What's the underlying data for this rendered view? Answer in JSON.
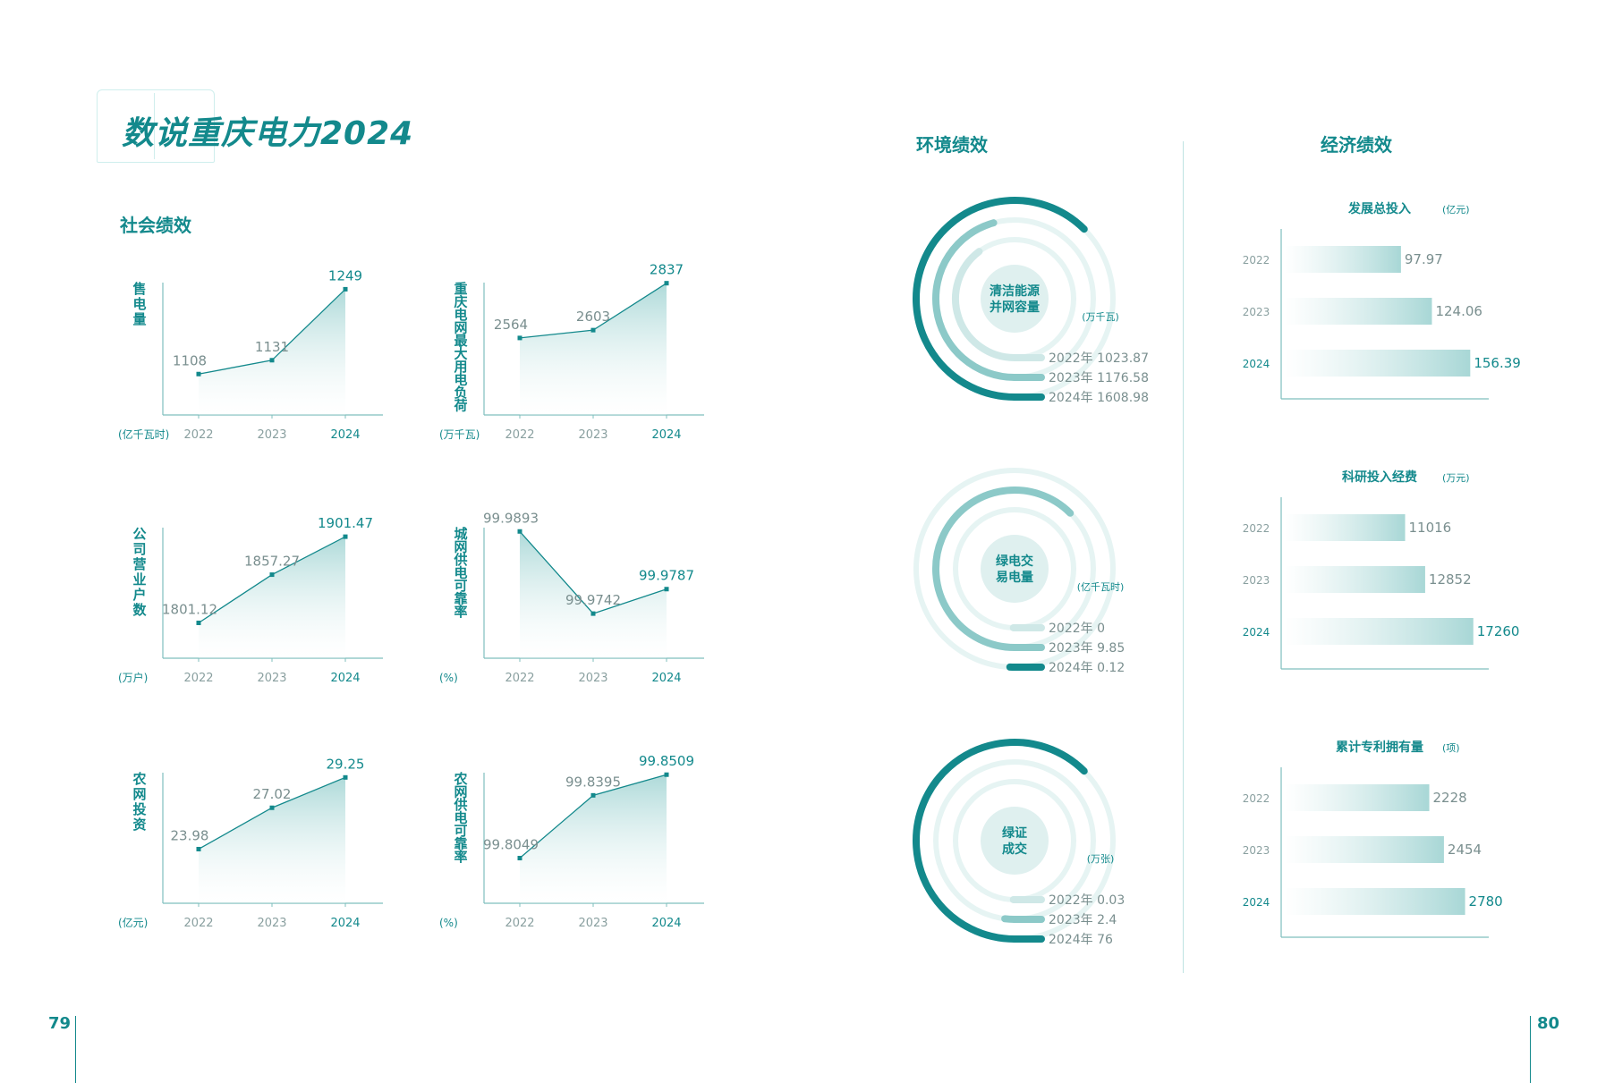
{
  "title": "数说重庆电力2024",
  "sections": {
    "social": "社会绩效",
    "environment": "环境绩效",
    "economic": "经济绩效"
  },
  "page_numbers": {
    "left": "79",
    "right": "80"
  },
  "colors": {
    "primary": "#13898c",
    "light": "#d7efee",
    "mid": "#8cc9c8",
    "axis": "#7fbfbe"
  },
  "chart_data": [
    {
      "type": "area",
      "id": "sales",
      "ylabel": "售电量",
      "unit": "(亿千瓦时)",
      "x": [
        "2022",
        "2023",
        "2024"
      ],
      "values": [
        1108,
        1131,
        1249
      ],
      "labels": [
        "1108",
        "1131",
        "1249"
      ],
      "ylim": [
        1040,
        1260
      ]
    },
    {
      "type": "area",
      "id": "maxload",
      "ylabel": "重庆电网最大用电负荷",
      "unit": "(万千瓦)",
      "x": [
        "2022",
        "2023",
        "2024"
      ],
      "values": [
        2564,
        2603,
        2837
      ],
      "labels": [
        "2564",
        "2603",
        "2837"
      ],
      "ylim": [
        2180,
        2840
      ]
    },
    {
      "type": "area",
      "id": "customers",
      "ylabel": "公司营业户数",
      "unit": "(万户)",
      "x": [
        "2022",
        "2023",
        "2024"
      ],
      "values": [
        1801.12,
        1857.27,
        1901.47
      ],
      "labels": [
        "1801.12",
        "1857.27",
        "1901.47"
      ],
      "ylim": [
        1760,
        1912
      ]
    },
    {
      "type": "area",
      "id": "urban",
      "ylabel": "城网供电可靠率",
      "unit": "(%)",
      "x": [
        "2022",
        "2023",
        "2024"
      ],
      "values": [
        99.9893,
        99.9742,
        99.9787
      ],
      "labels": [
        "99.9893",
        "99.9742",
        "99.9787"
      ],
      "ylim": [
        99.966,
        99.99
      ]
    },
    {
      "type": "area",
      "id": "rural_invest",
      "ylabel": "农网投资",
      "unit": "(亿元)",
      "x": [
        "2022",
        "2023",
        "2024"
      ],
      "values": [
        23.98,
        27.02,
        29.25
      ],
      "labels": [
        "23.98",
        "27.02",
        "29.25"
      ],
      "ylim": [
        20,
        29.6
      ]
    },
    {
      "type": "area",
      "id": "rural_rel",
      "ylabel": "农网供电可靠率",
      "unit": "(%)",
      "x": [
        "2022",
        "2023",
        "2024"
      ],
      "values": [
        99.8049,
        99.8395,
        99.8509
      ],
      "labels": [
        "99.8049",
        "99.8395",
        "99.8509"
      ],
      "ylim": [
        99.78,
        99.852
      ]
    },
    {
      "type": "radial",
      "id": "clean",
      "title": "清洁能源并网容量",
      "unit": "(万千瓦)",
      "items": [
        {
          "label": "2022年 1023.87",
          "value": 1023.87
        },
        {
          "label": "2023年 1176.58",
          "value": 1176.58
        },
        {
          "label": "2024年 1608.98",
          "value": 1608.98
        }
      ]
    },
    {
      "type": "radial",
      "id": "green_power",
      "title": "绿电交易电量",
      "unit": "(亿千瓦时)",
      "items": [
        {
          "label": "2022年 0",
          "value": 0
        },
        {
          "label": "2023年 9.85",
          "value": 9.85
        },
        {
          "label": "2024年 0.12",
          "value": 0.12
        }
      ]
    },
    {
      "type": "radial",
      "id": "green_cert",
      "title": "绿证成交",
      "unit": "(万张)",
      "items": [
        {
          "label": "2022年 0.03",
          "value": 0.03
        },
        {
          "label": "2023年 2.4",
          "value": 2.4
        },
        {
          "label": "2024年 76",
          "value": 76
        }
      ]
    },
    {
      "type": "bar",
      "id": "invest",
      "title": "发展总投入",
      "unit": "(亿元)",
      "categories": [
        "2022",
        "2023",
        "2024"
      ],
      "values": [
        97.97,
        124.06,
        156.39
      ],
      "labels": [
        "97.97",
        "124.06",
        "156.39"
      ],
      "xlim": [
        0,
        175
      ]
    },
    {
      "type": "bar",
      "id": "rd",
      "title": "科研投入经费",
      "unit": "(万元)",
      "categories": [
        "2022",
        "2023",
        "2024"
      ],
      "values": [
        11016,
        12852,
        17260
      ],
      "labels": [
        "11016",
        "12852",
        "17260"
      ],
      "xlim": [
        0,
        19000
      ]
    },
    {
      "type": "bar",
      "id": "patents",
      "title": "累计专利拥有量",
      "unit": "(项)",
      "categories": [
        "2022",
        "2023",
        "2024"
      ],
      "values": [
        2228,
        2454,
        2780
      ],
      "labels": [
        "2228",
        "2454",
        "2780"
      ],
      "xlim": [
        0,
        3200
      ]
    }
  ]
}
